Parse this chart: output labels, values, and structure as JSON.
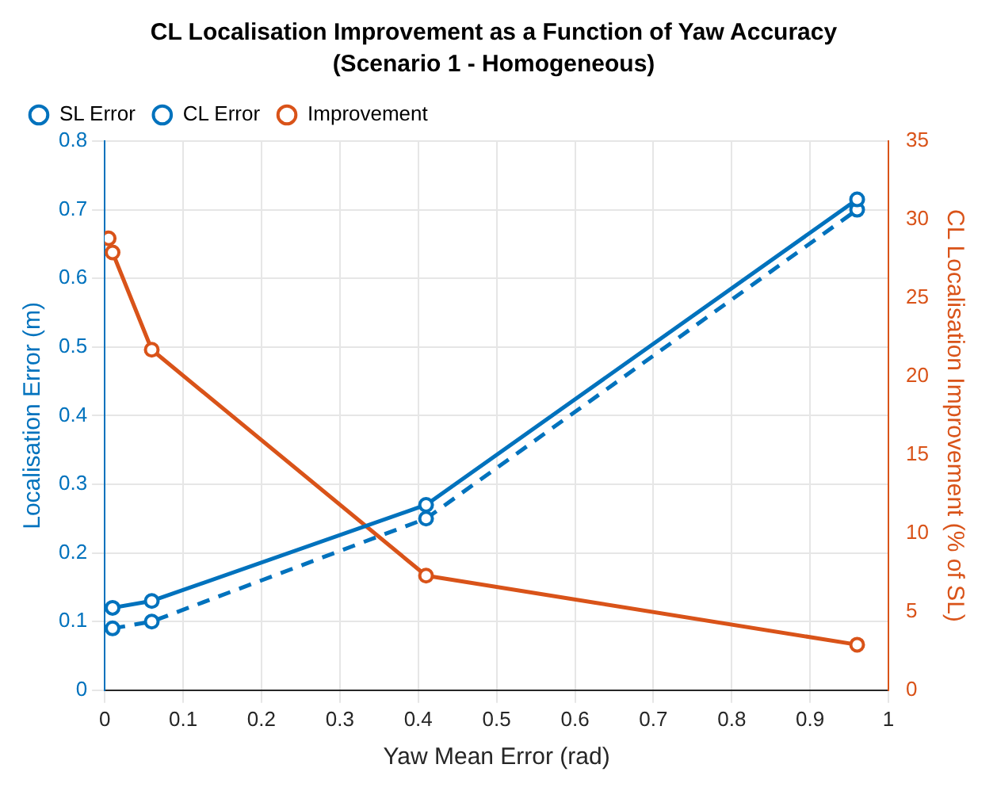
{
  "chart_data": {
    "type": "line",
    "title": "CL Localisation Improvement as a Function of Yaw Accuracy",
    "subtitle": "(Scenario 1 - Homogeneous)",
    "xlabel": "Yaw Mean Error (rad)",
    "ylabel": "Localisation Error (m)",
    "y2label": "CL Localisation Improvement (% of SL)",
    "series": [
      {
        "name": "SL Error",
        "color": "#0072bd",
        "x": [
          0.01,
          0.06,
          0.41,
          0.96
        ],
        "values": [
          0.12,
          0.13,
          0.27,
          0.715
        ],
        "line_style": "solid"
      },
      {
        "name": "CL Error",
        "color": "#0072bd",
        "x": [
          0.01,
          0.06,
          0.41,
          0.96
        ],
        "values": [
          0.09,
          0.1,
          0.25,
          0.7
        ],
        "line_style": "dashed"
      },
      {
        "name": "Improvement",
        "color": "#d95319",
        "x": [
          0.005,
          0.01,
          0.06,
          0.41,
          0.96
        ],
        "values": [
          28.8,
          27.9,
          21.7,
          7.3,
          2.9
        ],
        "line_style": "solid",
        "axis": "y2"
      }
    ],
    "xlim": [
      0,
      1
    ],
    "xticks": [
      0,
      0.1,
      0.2,
      0.3,
      0.4,
      0.5,
      0.6,
      0.7,
      0.8,
      0.9,
      1
    ],
    "ylim": [
      0,
      0.8
    ],
    "yticks": [
      0,
      0.1,
      0.2,
      0.3,
      0.4,
      0.5,
      0.6,
      0.7,
      0.8
    ],
    "y2lim": [
      0,
      35
    ],
    "y2ticks": [
      0,
      5,
      10,
      15,
      20,
      25,
      30,
      35
    ],
    "grid": true,
    "legend": "top left",
    "marker": "circle"
  }
}
